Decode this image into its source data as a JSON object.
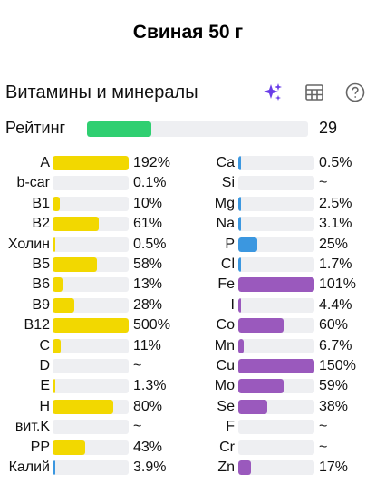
{
  "header": {
    "title": "Свиная 50 г"
  },
  "section": {
    "title": "Витамины и минералы"
  },
  "toolbar": {
    "icons": [
      "sparkle-icon",
      "table-icon",
      "help-icon"
    ],
    "colors": {
      "sparkle": "#6a3de8",
      "icon": "#666666"
    }
  },
  "rating": {
    "label": "Рейтинг",
    "value": "29",
    "fill_percent": 29,
    "color": "#2fcf71"
  },
  "colors": {
    "vitamin": "#f2d800",
    "mineral_blue": "#3b97e0",
    "mineral_purple": "#9a59bd",
    "track": "#eeeff2"
  },
  "vitamins": [
    {
      "label": "A",
      "value": "192%",
      "fill": 1.0
    },
    {
      "label": "b-car",
      "value": "0.1%",
      "fill": 0.0
    },
    {
      "label": "B1",
      "value": "10%",
      "fill": 0.1
    },
    {
      "label": "B2",
      "value": "61%",
      "fill": 0.61
    },
    {
      "label": "Холин",
      "value": "0.5%",
      "fill": 0.01
    },
    {
      "label": "B5",
      "value": "58%",
      "fill": 0.58
    },
    {
      "label": "B6",
      "value": "13%",
      "fill": 0.13
    },
    {
      "label": "B9",
      "value": "28%",
      "fill": 0.28
    },
    {
      "label": "B12",
      "value": "500%",
      "fill": 1.0
    },
    {
      "label": "C",
      "value": "11%",
      "fill": 0.11
    },
    {
      "label": "D",
      "value": "~",
      "fill": 0
    },
    {
      "label": "E",
      "value": "1.3%",
      "fill": 0.02
    },
    {
      "label": "H",
      "value": "80%",
      "fill": 0.8
    },
    {
      "label": "вит.K",
      "value": "~",
      "fill": 0
    },
    {
      "label": "PP",
      "value": "43%",
      "fill": 0.43
    },
    {
      "label": "Калий",
      "value": "3.9%",
      "fill": 0.04,
      "color": "#3b97e0"
    }
  ],
  "minerals": [
    {
      "label": "Ca",
      "value": "0.5%",
      "fill": 0.01,
      "color": "#3b97e0"
    },
    {
      "label": "Si",
      "value": "~",
      "fill": 0,
      "color": "#3b97e0"
    },
    {
      "label": "Mg",
      "value": "2.5%",
      "fill": 0.03,
      "color": "#3b97e0"
    },
    {
      "label": "Na",
      "value": "3.1%",
      "fill": 0.03,
      "color": "#3b97e0"
    },
    {
      "label": "P",
      "value": "25%",
      "fill": 0.25,
      "color": "#3b97e0"
    },
    {
      "label": "Cl",
      "value": "1.7%",
      "fill": 0.02,
      "color": "#3b97e0"
    },
    {
      "label": "Fe",
      "value": "101%",
      "fill": 1.0,
      "color": "#9a59bd"
    },
    {
      "label": "I",
      "value": "4.4%",
      "fill": 0.04,
      "color": "#9a59bd"
    },
    {
      "label": "Co",
      "value": "60%",
      "fill": 0.6,
      "color": "#9a59bd"
    },
    {
      "label": "Mn",
      "value": "6.7%",
      "fill": 0.07,
      "color": "#9a59bd"
    },
    {
      "label": "Cu",
      "value": "150%",
      "fill": 1.0,
      "color": "#9a59bd"
    },
    {
      "label": "Mo",
      "value": "59%",
      "fill": 0.59,
      "color": "#9a59bd"
    },
    {
      "label": "Se",
      "value": "38%",
      "fill": 0.38,
      "color": "#9a59bd"
    },
    {
      "label": "F",
      "value": "~",
      "fill": 0,
      "color": "#9a59bd"
    },
    {
      "label": "Cr",
      "value": "~",
      "fill": 0,
      "color": "#9a59bd"
    },
    {
      "label": "Zn",
      "value": "17%",
      "fill": 0.17,
      "color": "#9a59bd"
    }
  ]
}
